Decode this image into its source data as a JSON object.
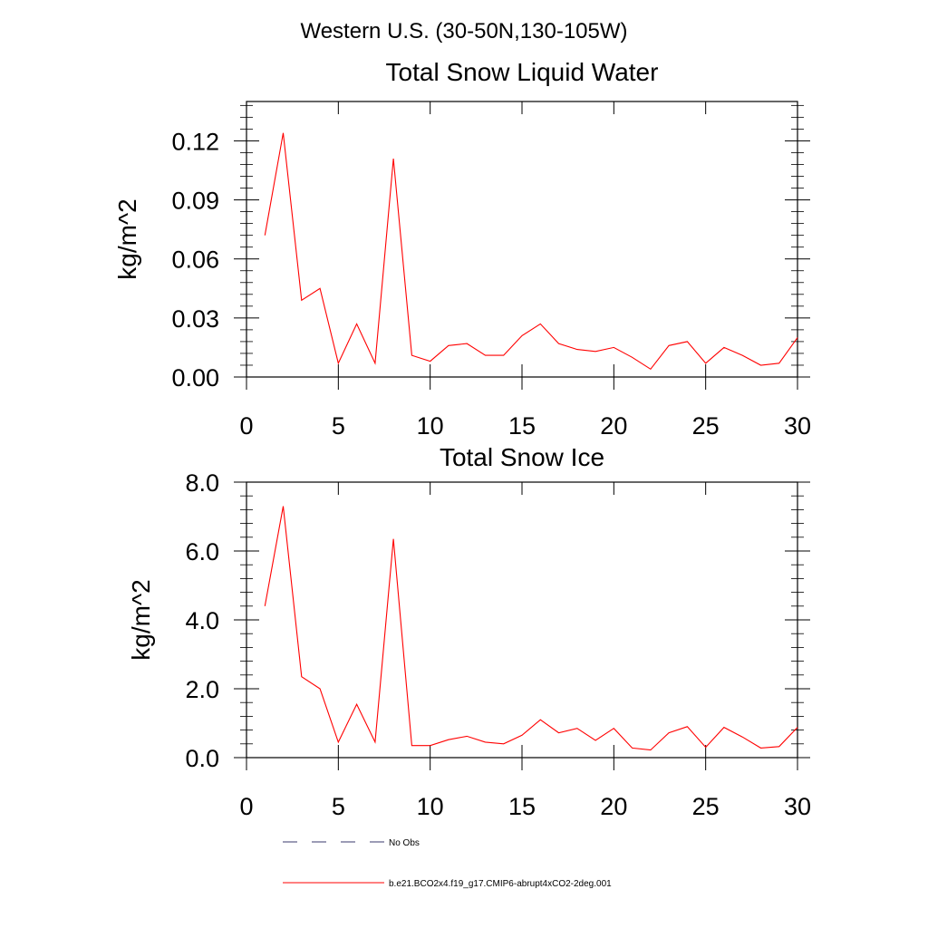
{
  "figure": {
    "suptitle": "Western U.S. (30-50N,130-105W)"
  },
  "chart_data": [
    {
      "type": "line",
      "title": "Total Snow Liquid Water",
      "xlabel": "",
      "ylabel": "kg/m^2",
      "xlim": [
        0,
        30
      ],
      "ylim": [
        0.0,
        0.14
      ],
      "x_ticks": [
        0,
        5,
        10,
        15,
        20,
        25,
        30
      ],
      "x_tick_labels": [
        "0",
        "5",
        "10",
        "15",
        "20",
        "25",
        "30"
      ],
      "y_ticks": [
        0.0,
        0.03,
        0.06,
        0.09,
        0.12
      ],
      "y_tick_labels": [
        "0.00",
        "0.03",
        "0.06",
        "0.09",
        "0.12"
      ],
      "grid": false,
      "x": [
        1,
        2,
        3,
        4,
        5,
        6,
        7,
        8,
        9,
        10,
        11,
        12,
        13,
        14,
        15,
        16,
        17,
        18,
        19,
        20,
        21,
        22,
        23,
        24,
        25,
        26,
        27,
        28,
        29,
        30
      ],
      "series": [
        {
          "name": "b.e21.BCO2x4.f19_g17.CMIP6-abrupt4xCO2-2deg.001",
          "color": "#ff0000",
          "values": [
            0.072,
            0.124,
            0.039,
            0.045,
            0.007,
            0.027,
            0.007,
            0.111,
            0.011,
            0.008,
            0.016,
            0.017,
            0.011,
            0.011,
            0.021,
            0.027,
            0.017,
            0.014,
            0.013,
            0.015,
            0.01,
            0.004,
            0.016,
            0.018,
            0.007,
            0.015,
            0.011,
            0.006,
            0.007,
            0.02
          ]
        }
      ]
    },
    {
      "type": "line",
      "title": "Total Snow Ice",
      "xlabel": "",
      "ylabel": "kg/m^2",
      "xlim": [
        0,
        30
      ],
      "ylim": [
        0.0,
        8.0
      ],
      "x_ticks": [
        0,
        5,
        10,
        15,
        20,
        25,
        30
      ],
      "x_tick_labels": [
        "0",
        "5",
        "10",
        "15",
        "20",
        "25",
        "30"
      ],
      "y_ticks": [
        0.0,
        2.0,
        4.0,
        6.0,
        8.0
      ],
      "y_tick_labels": [
        "0.0",
        "2.0",
        "4.0",
        "6.0",
        "8.0"
      ],
      "grid": false,
      "x": [
        1,
        2,
        3,
        4,
        5,
        6,
        7,
        8,
        9,
        10,
        11,
        12,
        13,
        14,
        15,
        16,
        17,
        18,
        19,
        20,
        21,
        22,
        23,
        24,
        25,
        26,
        27,
        28,
        29,
        30
      ],
      "series": [
        {
          "name": "b.e21.BCO2x4.f19_g17.CMIP6-abrupt4xCO2-2deg.001",
          "color": "#ff0000",
          "values": [
            4.4,
            7.3,
            2.35,
            2.0,
            0.45,
            1.55,
            0.45,
            6.35,
            0.35,
            0.35,
            0.52,
            0.62,
            0.45,
            0.4,
            0.65,
            1.1,
            0.72,
            0.85,
            0.5,
            0.85,
            0.28,
            0.22,
            0.72,
            0.9,
            0.3,
            0.88,
            0.6,
            0.28,
            0.32,
            0.88
          ]
        }
      ]
    }
  ],
  "legend": {
    "placement": "bottom",
    "items": [
      {
        "label": "No Obs",
        "style": "dashed",
        "color": "#3a3a6e"
      },
      {
        "label": "b.e21.BCO2x4.f19_g17.CMIP6-abrupt4xCO2-2deg.001",
        "style": "solid",
        "color": "#ff0000"
      }
    ]
  }
}
